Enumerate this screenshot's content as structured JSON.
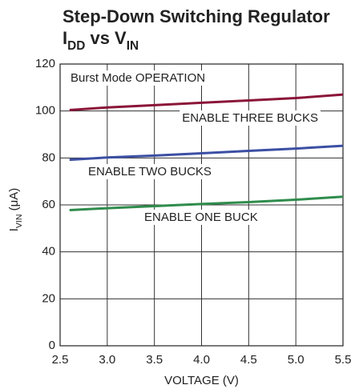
{
  "chart_data": {
    "type": "line",
    "title_lines": [
      [
        {
          "text": "Step-Down Switching Regulator"
        }
      ],
      [
        {
          "text": "I"
        },
        {
          "text": "DD",
          "sub": true
        },
        {
          "text": " vs V"
        },
        {
          "text": "IN",
          "sub": true
        }
      ]
    ],
    "x_label": "VOLTAGE (V)",
    "y_label": [
      {
        "text": "I"
      },
      {
        "text": "VIN",
        "sub": true
      },
      {
        "text": " (μA)"
      }
    ],
    "x": [
      2.6,
      3.0,
      3.5,
      4.0,
      4.5,
      5.0,
      5.5
    ],
    "series": [
      {
        "name": "ENABLE THREE BUCKS",
        "color": "#8b1538",
        "values": [
          100.4,
          101.5,
          102.5,
          103.5,
          104.5,
          105.5,
          107
        ]
      },
      {
        "name": "ENABLE TWO BUCKS",
        "color": "#3b4fa3",
        "values": [
          79.2,
          80.2,
          81,
          82,
          83,
          84,
          85.2
        ]
      },
      {
        "name": "ENABLE ONE BUCK",
        "color": "#2f8c4c",
        "values": [
          57.8,
          58.6,
          59.5,
          60.4,
          61.2,
          62.2,
          63.5
        ]
      }
    ],
    "annotations": [
      "Burst Mode OPERATION"
    ],
    "xlim": [
      2.5,
      5.5
    ],
    "xticks": [
      2.5,
      {
        "value": 3,
        "label": "3.0"
      },
      3.5,
      {
        "value": 4,
        "label": "4.0"
      },
      4.5,
      {
        "value": 5,
        "label": "5.0"
      },
      5.5
    ],
    "ylim": [
      0,
      120
    ],
    "yticks": [
      0,
      20,
      40,
      60,
      80,
      100,
      120
    ],
    "grid": true
  }
}
